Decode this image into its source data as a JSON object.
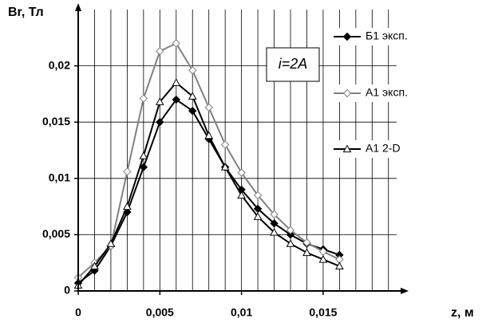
{
  "chart_data": {
    "type": "line",
    "y_label": "Br, Тл",
    "x_label": "z, м",
    "annotation": "i=2A",
    "x": [
      0,
      0.001,
      0.002,
      0.003,
      0.004,
      0.005,
      0.006,
      0.007,
      0.008,
      0.009,
      0.01,
      0.011,
      0.012,
      0.013,
      0.014,
      0.015,
      0.016
    ],
    "series": [
      {
        "name": "Б1 эксп.",
        "color": "#000000",
        "marker": "diamond-filled",
        "values": [
          0.0007,
          0.0018,
          0.004,
          0.007,
          0.011,
          0.015,
          0.017,
          0.016,
          0.0135,
          0.011,
          0.009,
          0.0073,
          0.006,
          0.005,
          0.0042,
          0.0037,
          0.0032
        ]
      },
      {
        "name": "А1 эксп.",
        "color": "#808080",
        "marker": "diamond-open",
        "values": [
          0.0012,
          0.0025,
          0.004,
          0.0106,
          0.0171,
          0.0213,
          0.022,
          0.0196,
          0.0163,
          0.013,
          0.0105,
          0.0085,
          0.0068,
          0.0054,
          0.0043,
          0.0035,
          0.0028
        ]
      },
      {
        "name": "А1 2-D",
        "color": "#000000",
        "marker": "triangle-open",
        "values": [
          0.0005,
          0.0022,
          0.0042,
          0.0075,
          0.012,
          0.0168,
          0.0185,
          0.0173,
          0.0138,
          0.011,
          0.0085,
          0.0066,
          0.0052,
          0.0042,
          0.0034,
          0.0028,
          0.0022
        ]
      }
    ],
    "xlim": [
      0,
      0.0195
    ],
    "ylim": [
      0,
      0.025
    ],
    "xticks": [
      0,
      {
        "value": 0.005,
        "label": "0,005"
      },
      {
        "value": 0.01,
        "label": "0,01"
      },
      {
        "value": 0.015,
        "label": "0,015"
      }
    ],
    "yticks": [
      0,
      {
        "value": 0.005,
        "label": "0,005"
      },
      {
        "value": 0.01,
        "label": "0,01"
      },
      {
        "value": 0.015,
        "label": "0,015"
      },
      {
        "value": 0.02,
        "label": "0,02"
      }
    ],
    "xgrid": [
      0.001,
      0.002,
      0.003,
      0.004,
      0.005,
      0.006,
      0.007,
      0.008,
      0.009,
      0.01,
      0.011,
      0.012,
      0.013,
      0.014,
      0.015,
      0.016,
      0.017,
      0.018,
      0.019
    ],
    "grid": true,
    "legend": "right"
  }
}
